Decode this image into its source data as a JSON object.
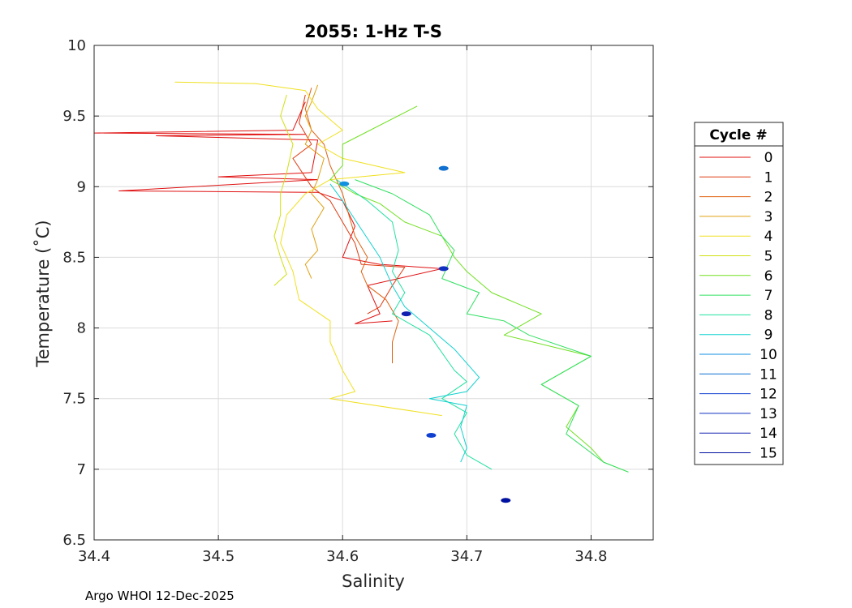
{
  "chart_data": {
    "type": "line",
    "title": "2055: 1-Hz T-S",
    "xlabel": "Salinity",
    "ylabel": "Temperature (˚C)",
    "xlim": [
      34.4,
      34.85
    ],
    "ylim": [
      6.5,
      10
    ],
    "xticks": [
      34.4,
      34.5,
      34.6,
      34.7,
      34.8
    ],
    "xtick_labels": [
      "34.4",
      "34.5",
      "34.6",
      "34.7",
      "34.8"
    ],
    "yticks": [
      6.5,
      7,
      7.5,
      8,
      8.5,
      9,
      9.5,
      10
    ],
    "ytick_labels": [
      "6.5",
      "7",
      "7.5",
      "8",
      "8.5",
      "9",
      "9.5",
      "10"
    ],
    "grid": true,
    "legend_title": "Cycle #",
    "legend_position": "outside-right",
    "footer": "Argo WHOI 12-Dec-2025",
    "series": [
      {
        "name": "0",
        "color": "#e01010",
        "points": [
          [
            34.57,
            9.6
          ],
          [
            34.56,
            9.4
          ],
          [
            34.4,
            9.38
          ],
          [
            34.57,
            9.37
          ],
          [
            34.45,
            9.36
          ],
          [
            34.58,
            9.33
          ],
          [
            34.575,
            9.1
          ],
          [
            34.5,
            9.07
          ],
          [
            34.58,
            9.05
          ],
          [
            34.42,
            8.97
          ],
          [
            34.58,
            8.96
          ],
          [
            34.6,
            8.9
          ],
          [
            34.61,
            8.72
          ],
          [
            34.6,
            8.5
          ],
          [
            34.63,
            8.45
          ],
          [
            34.68,
            8.42
          ],
          [
            34.62,
            8.3
          ],
          [
            34.63,
            8.1
          ],
          [
            34.61,
            8.03
          ],
          [
            34.64,
            8.05
          ]
        ]
      },
      {
        "name": "1",
        "color": "#e03a10",
        "points": [
          [
            34.57,
            9.65
          ],
          [
            34.565,
            9.45
          ],
          [
            34.575,
            9.3
          ],
          [
            34.56,
            9.2
          ],
          [
            34.575,
            9.0
          ],
          [
            34.59,
            8.9
          ],
          [
            34.6,
            8.75
          ],
          [
            34.61,
            8.6
          ],
          [
            34.615,
            8.45
          ],
          [
            34.65,
            8.43
          ],
          [
            34.64,
            8.3
          ],
          [
            34.63,
            8.15
          ],
          [
            34.62,
            8.1
          ]
        ]
      },
      {
        "name": "2",
        "color": "#e06010",
        "points": [
          [
            34.575,
            9.7
          ],
          [
            34.57,
            9.55
          ],
          [
            34.575,
            9.4
          ],
          [
            34.585,
            9.3
          ],
          [
            34.59,
            9.15
          ],
          [
            34.595,
            9.05
          ],
          [
            34.6,
            8.95
          ],
          [
            34.605,
            8.8
          ],
          [
            34.61,
            8.65
          ],
          [
            34.62,
            8.5
          ],
          [
            34.615,
            8.4
          ],
          [
            34.62,
            8.3
          ],
          [
            34.635,
            8.2
          ],
          [
            34.645,
            8.05
          ],
          [
            34.64,
            7.9
          ],
          [
            34.64,
            7.75
          ]
        ]
      },
      {
        "name": "3",
        "color": "#e0a010",
        "points": [
          [
            34.58,
            9.72
          ],
          [
            34.575,
            9.6
          ],
          [
            34.57,
            9.5
          ],
          [
            34.575,
            9.4
          ],
          [
            34.57,
            9.3
          ],
          [
            34.585,
            9.2
          ],
          [
            34.58,
            9.05
          ],
          [
            34.575,
            8.95
          ],
          [
            34.585,
            8.85
          ],
          [
            34.575,
            8.7
          ],
          [
            34.58,
            8.55
          ],
          [
            34.57,
            8.45
          ],
          [
            34.575,
            8.35
          ]
        ]
      },
      {
        "name": "4",
        "color": "#f0e020",
        "points": [
          [
            34.465,
            9.74
          ],
          [
            34.53,
            9.73
          ],
          [
            34.57,
            9.68
          ],
          [
            34.58,
            9.55
          ],
          [
            34.6,
            9.4
          ],
          [
            34.58,
            9.3
          ],
          [
            34.6,
            9.2
          ],
          [
            34.65,
            9.1
          ],
          [
            34.59,
            9.05
          ],
          [
            34.57,
            8.95
          ],
          [
            34.555,
            8.8
          ],
          [
            34.55,
            8.6
          ],
          [
            34.56,
            8.4
          ],
          [
            34.565,
            8.2
          ],
          [
            34.59,
            8.05
          ],
          [
            34.59,
            7.9
          ],
          [
            34.6,
            7.7
          ],
          [
            34.61,
            7.55
          ],
          [
            34.59,
            7.5
          ],
          [
            34.68,
            7.38
          ]
        ]
      },
      {
        "name": "5",
        "color": "#d0e010",
        "points": [
          [
            34.555,
            9.65
          ],
          [
            34.55,
            9.5
          ],
          [
            34.56,
            9.3
          ],
          [
            34.555,
            9.1
          ],
          [
            34.55,
            8.95
          ],
          [
            34.55,
            8.8
          ],
          [
            34.545,
            8.65
          ],
          [
            34.55,
            8.5
          ],
          [
            34.555,
            8.38
          ],
          [
            34.545,
            8.3
          ]
        ]
      },
      {
        "name": "6",
        "color": "#70e020",
        "points": [
          [
            34.66,
            9.57
          ],
          [
            34.6,
            9.3
          ],
          [
            34.6,
            9.15
          ],
          [
            34.59,
            9.05
          ],
          [
            34.61,
            8.95
          ],
          [
            34.63,
            8.88
          ],
          [
            34.65,
            8.75
          ],
          [
            34.68,
            8.65
          ],
          [
            34.69,
            8.5
          ],
          [
            34.7,
            8.4
          ],
          [
            34.72,
            8.25
          ],
          [
            34.76,
            8.1
          ],
          [
            34.73,
            7.95
          ],
          [
            34.8,
            7.8
          ],
          [
            34.76,
            7.6
          ],
          [
            34.79,
            7.45
          ],
          [
            34.78,
            7.3
          ],
          [
            34.8,
            7.15
          ],
          [
            34.81,
            7.05
          ],
          [
            34.83,
            6.98
          ]
        ]
      },
      {
        "name": "7",
        "color": "#30e060",
        "points": [
          [
            34.61,
            9.05
          ],
          [
            34.64,
            8.95
          ],
          [
            34.67,
            8.8
          ],
          [
            34.68,
            8.65
          ],
          [
            34.69,
            8.55
          ],
          [
            34.68,
            8.35
          ],
          [
            34.71,
            8.25
          ],
          [
            34.7,
            8.1
          ],
          [
            34.73,
            8.05
          ],
          [
            34.75,
            7.95
          ],
          [
            34.8,
            7.8
          ],
          [
            34.76,
            7.6
          ],
          [
            34.79,
            7.45
          ],
          [
            34.78,
            7.25
          ],
          [
            34.81,
            7.05
          ],
          [
            34.83,
            6.98
          ]
        ]
      },
      {
        "name": "8",
        "color": "#20e0a0",
        "points": [
          [
            34.595,
            9.05
          ],
          [
            34.62,
            8.9
          ],
          [
            34.64,
            8.75
          ],
          [
            34.645,
            8.55
          ],
          [
            34.64,
            8.4
          ],
          [
            34.65,
            8.25
          ],
          [
            34.64,
            8.1
          ],
          [
            34.67,
            7.95
          ],
          [
            34.69,
            7.7
          ],
          [
            34.7,
            7.62
          ],
          [
            34.68,
            7.5
          ],
          [
            34.7,
            7.4
          ],
          [
            34.69,
            7.25
          ],
          [
            34.7,
            7.1
          ],
          [
            34.72,
            7.0
          ]
        ]
      },
      {
        "name": "9",
        "color": "#10d0d0",
        "points": [
          [
            34.59,
            9.02
          ],
          [
            34.6,
            8.9
          ],
          [
            34.615,
            8.7
          ],
          [
            34.63,
            8.5
          ],
          [
            34.64,
            8.3
          ],
          [
            34.65,
            8.15
          ],
          [
            34.67,
            8.0
          ],
          [
            34.69,
            7.85
          ],
          [
            34.71,
            7.65
          ],
          [
            34.7,
            7.55
          ],
          [
            34.67,
            7.5
          ],
          [
            34.7,
            7.45
          ],
          [
            34.695,
            7.3
          ],
          [
            34.7,
            7.15
          ],
          [
            34.695,
            7.05
          ]
        ]
      },
      {
        "name": "10",
        "color": "#1090e0",
        "points": [
          [
            34.6,
            9.02
          ],
          [
            34.615,
            8.98
          ]
        ]
      },
      {
        "name": "11",
        "color": "#1070d0",
        "points": [
          [
            34.68,
            9.13
          ],
          [
            34.685,
            9.12
          ]
        ]
      },
      {
        "name": "12",
        "color": "#1040d0",
        "points": [
          [
            34.67,
            7.24
          ],
          [
            34.675,
            7.24
          ]
        ]
      },
      {
        "name": "13",
        "color": "#1030c0",
        "points": [
          [
            34.68,
            8.42
          ],
          [
            34.69,
            8.41
          ]
        ]
      },
      {
        "name": "14",
        "color": "#1020b0",
        "points": [
          [
            34.65,
            8.1
          ],
          [
            34.655,
            8.1
          ]
        ]
      },
      {
        "name": "15",
        "color": "#0010a0",
        "points": [
          [
            34.73,
            6.78
          ],
          [
            34.735,
            6.78
          ]
        ]
      }
    ]
  }
}
